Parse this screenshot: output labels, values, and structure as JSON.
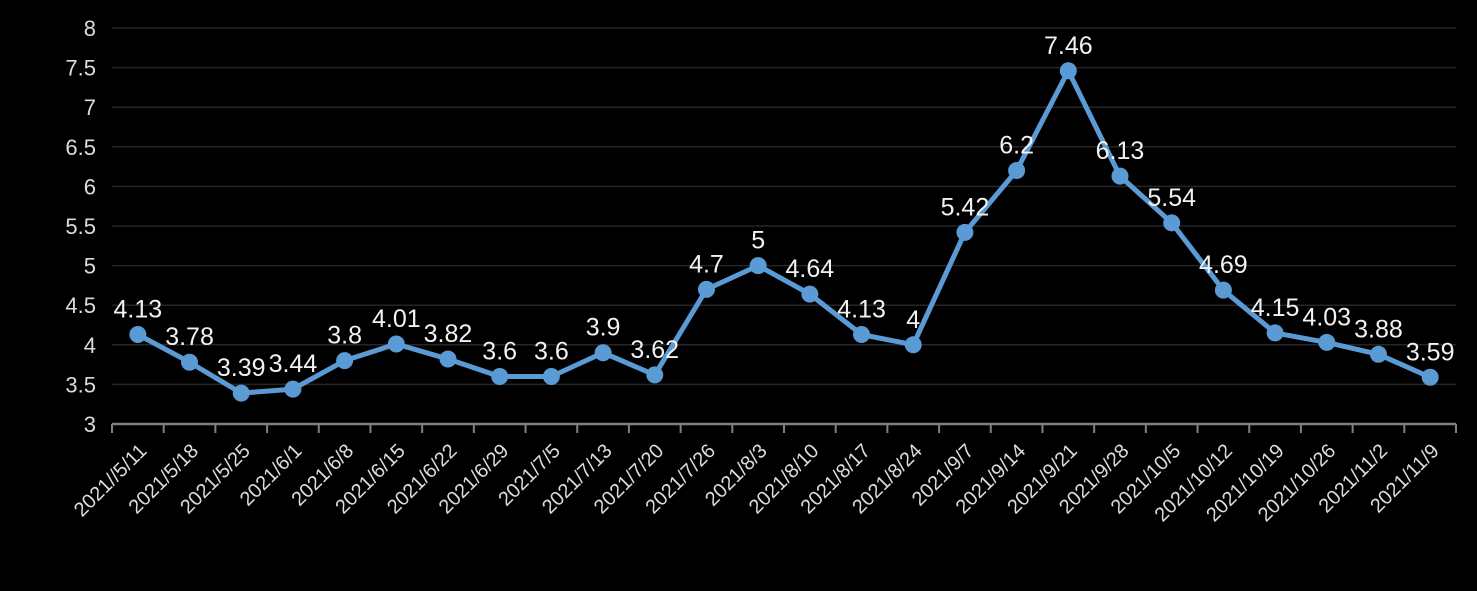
{
  "chart_data": {
    "type": "line",
    "categories": [
      "2021//5/11",
      "2021/5/18",
      "2021/5/25",
      "2021/6/1",
      "2021/6/8",
      "2021/6/15",
      "2021/6/22",
      "2021/6/29",
      "2021/7/5",
      "2021/7/13",
      "2021/7/20",
      "2021/7/26",
      "2021/8/3",
      "2021/8/10",
      "2021/8/17",
      "2021/8/24",
      "2021/9/7",
      "2021/9/14",
      "2021/9/21",
      "2021/9/28",
      "2021/10/5",
      "2021/10/12",
      "2021/10/19",
      "2021/10/26",
      "2021/11/2",
      "2021/11/9"
    ],
    "values": [
      4.13,
      3.78,
      3.39,
      3.44,
      3.8,
      4.01,
      3.82,
      3.6,
      3.6,
      3.9,
      3.62,
      4.7,
      5,
      4.64,
      4.13,
      4,
      5.42,
      6.2,
      7.46,
      6.13,
      5.54,
      4.69,
      4.15,
      4.03,
      3.88,
      3.59
    ],
    "point_labels": [
      "4.13",
      "3.78",
      "3.39",
      "3.44",
      "3.8",
      "4.01",
      "3.82",
      "3.6",
      "3.6",
      "3.9",
      "3.62",
      "4.7",
      "5",
      "4.64",
      "4.13",
      "4",
      "5.42",
      "6.2",
      "7.46",
      "6.13",
      "5.54",
      "4.69",
      "4.15",
      "4.03",
      "3.88",
      "3.59"
    ],
    "y_ticks": [
      "8",
      "7.5",
      "7",
      "6.5",
      "6",
      "5.5",
      "5",
      "4.5",
      "4",
      "3.5",
      "3"
    ],
    "ylim": [
      3,
      8
    ],
    "y_step": 0.5,
    "grid": true,
    "legend_position": "none",
    "data_labels_position": "above",
    "colors": {
      "line": "#5B9BD5",
      "marker": "#5B9BD5",
      "background": "#000000",
      "data_label": "#F2F2F2",
      "axis_label": "#DCDCDC",
      "axis_line": "#7F7F7F",
      "gridline": "#262626"
    }
  }
}
